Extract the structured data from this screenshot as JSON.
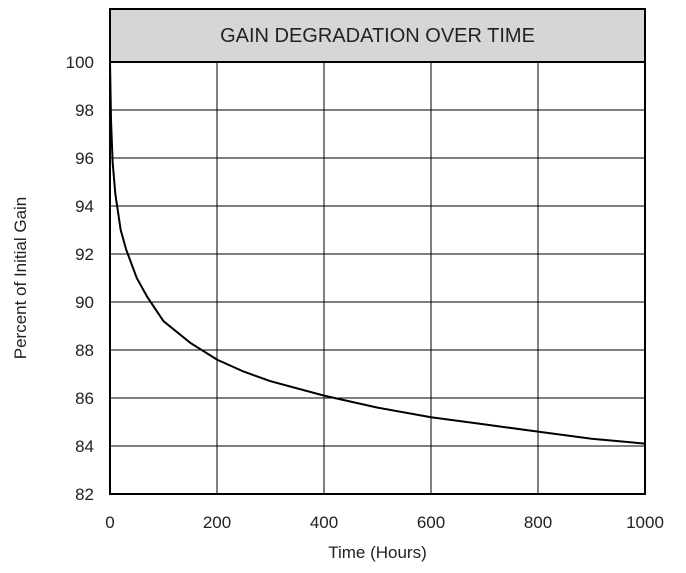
{
  "chart_data": {
    "type": "line",
    "title": "GAIN DEGRADATION OVER TIME",
    "xlabel": "Time (Hours)",
    "ylabel": "Percent of Initial Gain",
    "xlim": [
      0,
      1000
    ],
    "ylim": [
      82,
      100
    ],
    "xticks": [
      0,
      200,
      400,
      600,
      800,
      1000
    ],
    "yticks": [
      82,
      84,
      86,
      88,
      90,
      92,
      94,
      96,
      98,
      100
    ],
    "grid": true,
    "colors": {
      "line": "#000000",
      "grid": "#000000",
      "title_band": "#d6d6d6"
    },
    "series": [
      {
        "x": [
          0,
          2,
          5,
          10,
          20,
          30,
          50,
          70,
          100,
          150,
          200,
          250,
          300,
          400,
          500,
          600,
          700,
          800,
          900,
          1000
        ],
        "y": [
          100,
          97.5,
          95.8,
          94.5,
          93.0,
          92.2,
          91.0,
          90.2,
          89.2,
          88.3,
          87.6,
          87.1,
          86.7,
          86.1,
          85.6,
          85.2,
          84.9,
          84.6,
          84.3,
          84.1
        ]
      }
    ]
  }
}
